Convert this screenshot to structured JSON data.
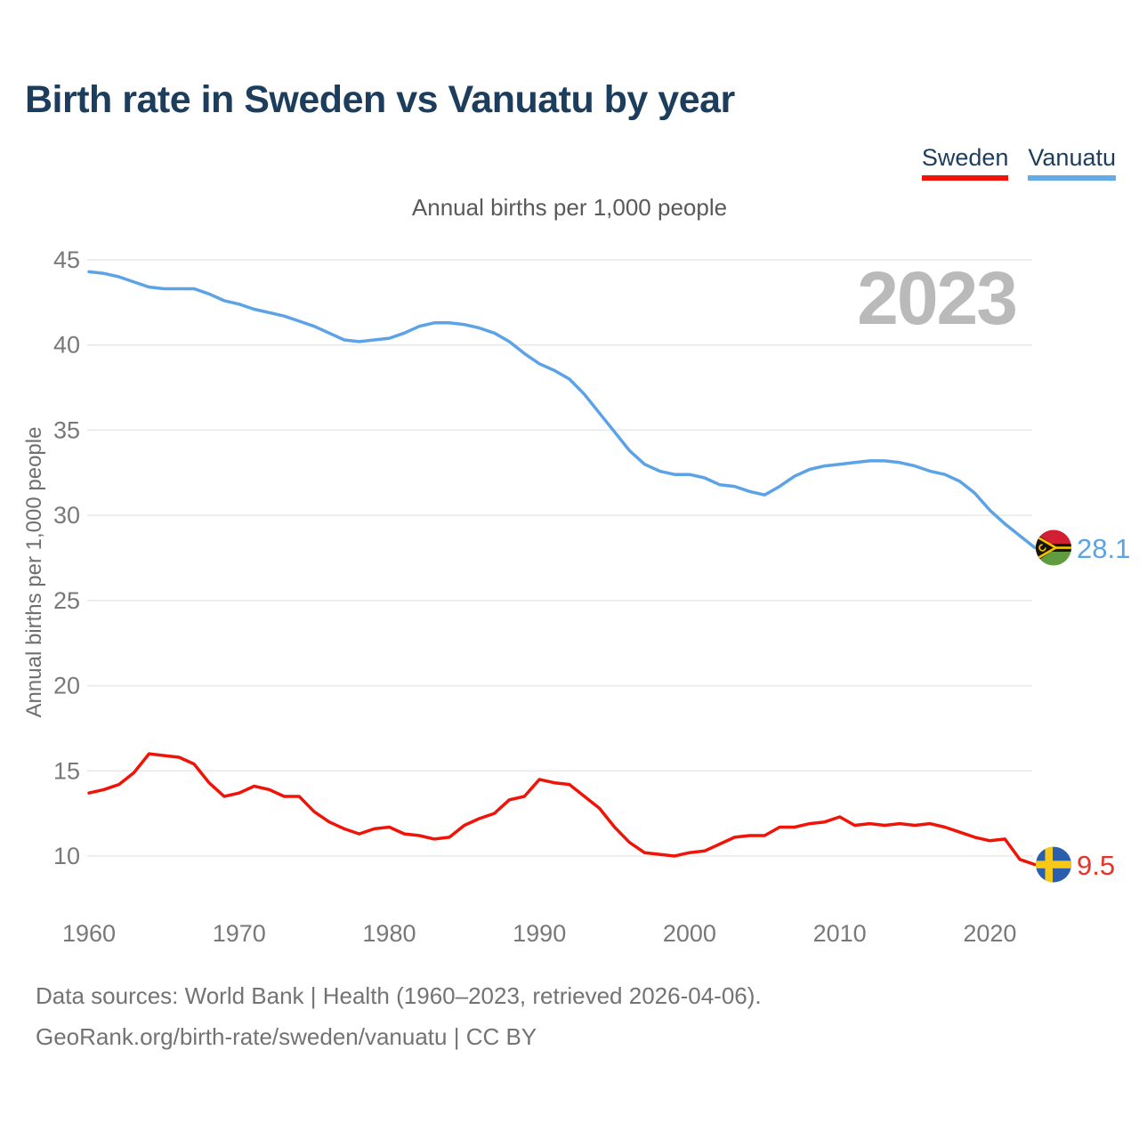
{
  "header": {
    "title": "Birth rate in Sweden vs Vanuatu by year"
  },
  "legend": {
    "items": [
      {
        "label": "Sweden",
        "color": "#f01408"
      },
      {
        "label": "Vanuatu",
        "color": "#64abe8"
      }
    ]
  },
  "subtitle": "Annual births per 1,000 people",
  "watermark": "2023",
  "footer": {
    "line1": "Data sources: World Bank | Health (1960–2023, retrieved 2026-04-06).",
    "line2": "GeoRank.org/birth-rate/sweden/vanuatu | CC BY"
  },
  "chart_data": {
    "type": "line",
    "title": "Annual births per 1,000 people",
    "xlabel": "",
    "ylabel": "Annual births per 1,000 people",
    "grid": true,
    "legend_position": "top-right",
    "xlim": [
      1960,
      2023
    ],
    "ylim": [
      10,
      45
    ],
    "yticks": [
      10,
      15,
      20,
      25,
      30,
      35,
      40,
      45
    ],
    "xticks": [
      1960,
      1970,
      1980,
      1990,
      2000,
      2010,
      2020
    ],
    "x": [
      1960,
      1961,
      1962,
      1963,
      1964,
      1965,
      1966,
      1967,
      1968,
      1969,
      1970,
      1971,
      1972,
      1973,
      1974,
      1975,
      1976,
      1977,
      1978,
      1979,
      1980,
      1981,
      1982,
      1983,
      1984,
      1985,
      1986,
      1987,
      1988,
      1989,
      1990,
      1991,
      1992,
      1993,
      1994,
      1995,
      1996,
      1997,
      1998,
      1999,
      2000,
      2001,
      2002,
      2003,
      2004,
      2005,
      2006,
      2007,
      2008,
      2009,
      2010,
      2011,
      2012,
      2013,
      2014,
      2015,
      2016,
      2017,
      2018,
      2019,
      2020,
      2021,
      2022,
      2023
    ],
    "series": [
      {
        "name": "Vanuatu",
        "color": "#5ba3e6",
        "label_color": "#5ba3e6",
        "end_label": "28.1",
        "flag": "vanuatu",
        "values": [
          44.3,
          44.2,
          44.0,
          43.7,
          43.4,
          43.3,
          43.3,
          43.3,
          43.0,
          42.6,
          42.4,
          42.1,
          41.9,
          41.7,
          41.4,
          41.1,
          40.7,
          40.3,
          40.2,
          40.3,
          40.4,
          40.7,
          41.1,
          41.3,
          41.3,
          41.2,
          41.0,
          40.7,
          40.2,
          39.5,
          38.9,
          38.5,
          38.0,
          37.1,
          36.0,
          34.9,
          33.8,
          33.0,
          32.6,
          32.4,
          32.4,
          32.2,
          31.8,
          31.7,
          31.4,
          31.2,
          31.7,
          32.3,
          32.7,
          32.9,
          33.0,
          33.1,
          33.2,
          33.2,
          33.1,
          32.9,
          32.6,
          32.4,
          32.0,
          31.3,
          30.3,
          29.5,
          28.8,
          28.1
        ]
      },
      {
        "name": "Sweden",
        "color": "#f01408",
        "label_color": "#e63526",
        "end_label": "9.5",
        "flag": "sweden",
        "values": [
          13.7,
          13.9,
          14.2,
          14.9,
          16.0,
          15.9,
          15.8,
          15.4,
          14.3,
          13.5,
          13.7,
          14.1,
          13.9,
          13.5,
          13.5,
          12.6,
          12.0,
          11.6,
          11.3,
          11.6,
          11.7,
          11.3,
          11.2,
          11.0,
          11.1,
          11.8,
          12.2,
          12.5,
          13.3,
          13.5,
          14.5,
          14.3,
          14.2,
          13.5,
          12.8,
          11.7,
          10.8,
          10.2,
          10.1,
          10.0,
          10.2,
          10.3,
          10.7,
          11.1,
          11.2,
          11.2,
          11.7,
          11.7,
          11.9,
          12.0,
          12.3,
          11.8,
          11.9,
          11.8,
          11.9,
          11.8,
          11.9,
          11.7,
          11.4,
          11.1,
          10.9,
          11.0,
          9.8,
          9.5
        ]
      }
    ]
  }
}
